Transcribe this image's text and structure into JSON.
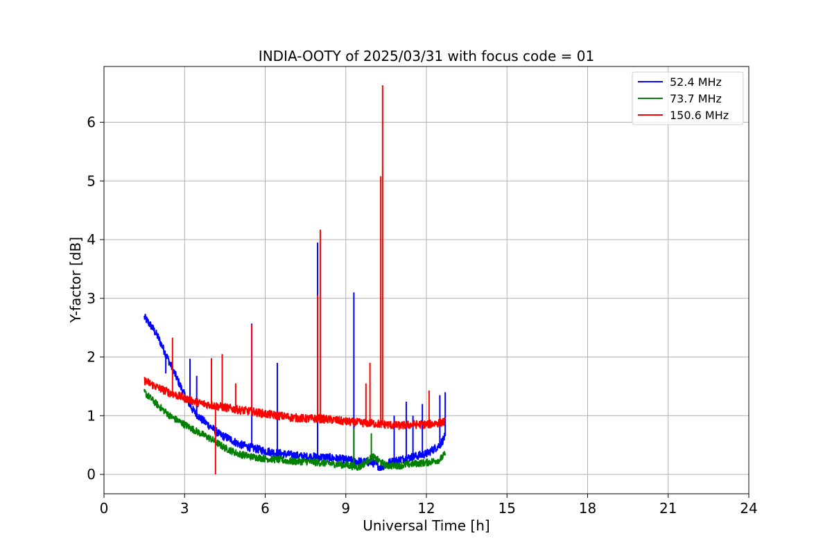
{
  "chart_data": {
    "type": "line",
    "title": "INDIA-OOTY of 2025/03/31 with focus code = 01",
    "xlabel": "Universal Time [h]",
    "ylabel": "Y-factor [dB]",
    "xlim": [
      0,
      24
    ],
    "ylim": [
      -0.33,
      6.95
    ],
    "xticks": [
      0,
      3,
      6,
      9,
      12,
      15,
      18,
      21,
      24
    ],
    "yticks": [
      0,
      1,
      2,
      3,
      4,
      5,
      6
    ],
    "grid": true,
    "legend_position": "top-right",
    "series": [
      {
        "name": "  52.4 MHz",
        "color": "#0000ff",
        "x": [
          1.5,
          1.8,
          2.0,
          2.2,
          2.5,
          2.8,
          3.0,
          3.3,
          3.6,
          4.0,
          4.3,
          4.7,
          5.0,
          5.5,
          6.0,
          6.5,
          7.0,
          7.5,
          8.0,
          8.5,
          9.0,
          9.5,
          10.0,
          10.3,
          10.6,
          11.0,
          11.5,
          12.0,
          12.5,
          12.7
        ],
        "y": [
          2.68,
          2.5,
          2.35,
          2.15,
          1.85,
          1.55,
          1.35,
          1.1,
          0.95,
          0.8,
          0.68,
          0.6,
          0.52,
          0.45,
          0.4,
          0.36,
          0.33,
          0.3,
          0.3,
          0.28,
          0.25,
          0.22,
          0.2,
          0.12,
          0.2,
          0.25,
          0.3,
          0.35,
          0.5,
          0.65
        ],
        "spikes": [
          {
            "x": 2.3,
            "y": 1.72
          },
          {
            "x": 3.2,
            "y": 1.97
          },
          {
            "x": 3.45,
            "y": 1.68
          },
          {
            "x": 5.5,
            "y": 2.57
          },
          {
            "x": 6.45,
            "y": 1.9
          },
          {
            "x": 7.95,
            "y": 3.95
          },
          {
            "x": 9.3,
            "y": 3.1
          },
          {
            "x": 10.8,
            "y": 1.0
          },
          {
            "x": 11.25,
            "y": 1.24
          },
          {
            "x": 11.5,
            "y": 1.0
          },
          {
            "x": 11.85,
            "y": 1.2
          },
          {
            "x": 12.5,
            "y": 1.35
          },
          {
            "x": 12.7,
            "y": 1.4
          }
        ]
      },
      {
        "name": "  73.7 MHz",
        "color": "#008000",
        "x": [
          1.5,
          2.0,
          2.5,
          3.0,
          3.5,
          4.0,
          4.5,
          5.0,
          5.5,
          6.0,
          6.5,
          7.0,
          7.5,
          8.0,
          8.5,
          9.0,
          9.5,
          10.0,
          10.5,
          11.0,
          11.5,
          12.0,
          12.5,
          12.7
        ],
        "y": [
          1.4,
          1.18,
          0.98,
          0.85,
          0.72,
          0.6,
          0.45,
          0.35,
          0.3,
          0.27,
          0.25,
          0.22,
          0.22,
          0.2,
          0.18,
          0.16,
          0.12,
          0.3,
          0.15,
          0.15,
          0.18,
          0.2,
          0.25,
          0.35
        ],
        "spikes": [
          {
            "x": 9.3,
            "y": 0.78
          },
          {
            "x": 9.95,
            "y": 0.7
          }
        ]
      },
      {
        "name": "  150.6 MHz",
        "color": "#ff0000",
        "x": [
          1.5,
          2.0,
          2.5,
          3.0,
          3.5,
          4.0,
          4.5,
          5.0,
          5.5,
          6.0,
          6.5,
          7.0,
          7.5,
          8.0,
          8.5,
          9.0,
          9.5,
          10.0,
          10.5,
          11.0,
          11.5,
          12.0,
          12.5,
          12.7
        ],
        "y": [
          1.6,
          1.48,
          1.38,
          1.3,
          1.22,
          1.18,
          1.14,
          1.1,
          1.07,
          1.03,
          1.0,
          0.97,
          0.95,
          0.95,
          0.93,
          0.9,
          0.88,
          0.87,
          0.85,
          0.83,
          0.85,
          0.85,
          0.88,
          0.9
        ],
        "spikes": [
          {
            "x": 2.55,
            "y": 2.33
          },
          {
            "x": 4.0,
            "y": 1.98
          },
          {
            "x": 4.15,
            "y": 0.0
          },
          {
            "x": 4.4,
            "y": 2.05
          },
          {
            "x": 4.9,
            "y": 1.55
          },
          {
            "x": 5.5,
            "y": 2.55
          },
          {
            "x": 7.95,
            "y": 3.05
          },
          {
            "x": 8.05,
            "y": 4.17
          },
          {
            "x": 9.75,
            "y": 1.55
          },
          {
            "x": 9.9,
            "y": 1.9
          },
          {
            "x": 10.3,
            "y": 5.08
          },
          {
            "x": 10.37,
            "y": 6.63
          },
          {
            "x": 12.1,
            "y": 1.43
          }
        ]
      }
    ]
  }
}
